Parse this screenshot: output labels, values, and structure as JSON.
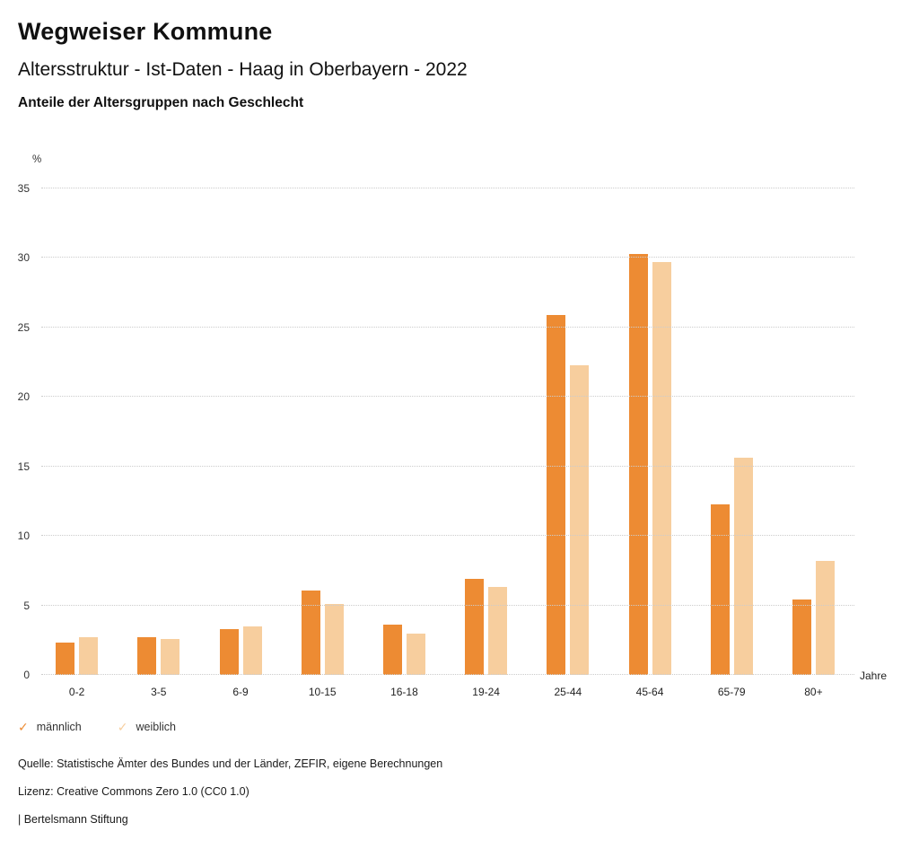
{
  "header": {
    "title": "Wegweiser Kommune",
    "subtitle": "Altersstruktur - Ist-Daten - Haag in Oberbayern - 2022",
    "subsubtitle": "Anteile der Altersgruppen nach Geschlecht"
  },
  "chart_data": {
    "type": "bar",
    "categories": [
      "0-2",
      "3-5",
      "6-9",
      "10-15",
      "16-18",
      "19-24",
      "25-44",
      "45-64",
      "65-79",
      "80+"
    ],
    "series": [
      {
        "name": "männlich",
        "color": "#ED8B33",
        "values": [
          2.3,
          2.7,
          3.3,
          6.1,
          3.6,
          6.9,
          25.9,
          30.3,
          12.3,
          5.4
        ]
      },
      {
        "name": "weiblich",
        "color": "#F7CE9E",
        "values": [
          2.7,
          2.6,
          3.5,
          5.1,
          3.0,
          6.3,
          22.3,
          29.7,
          15.6,
          8.2
        ]
      }
    ],
    "ylabel": "%",
    "xlabel": "Jahre",
    "ylim": [
      0,
      35
    ],
    "yticks": [
      0,
      5,
      10,
      15,
      20,
      25,
      30,
      35
    ],
    "grid": true,
    "legend_position": "bottom"
  },
  "legend": {
    "check_glyph": "✓",
    "items": [
      {
        "label": "männlich",
        "color": "#ED8B33"
      },
      {
        "label": "weiblich",
        "color": "#F7CE9E"
      }
    ]
  },
  "footer": {
    "source": "Quelle: Statistische Ämter des Bundes und der Länder, ZEFIR, eigene Berechnungen",
    "license": "Lizenz: Creative Commons Zero 1.0 (CC0 1.0)",
    "brand": "| Bertelsmann Stiftung"
  }
}
